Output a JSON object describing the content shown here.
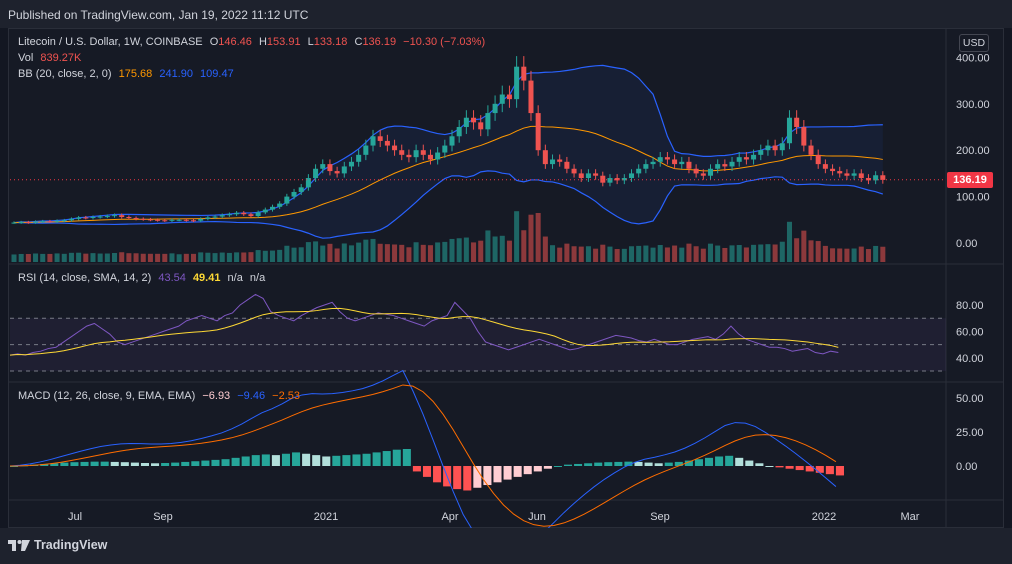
{
  "header": {
    "published": "Published on TradingView.com, Jan 19, 2022 11:12 UTC"
  },
  "branding": {
    "logo_text": "TradingView",
    "logo_icon": "tradingview-logo-icon"
  },
  "price_pane": {
    "symbol": "Litecoin / U.S. Dollar, 1W, COINBASE",
    "ohlc": {
      "O_label": "O",
      "O": "146.46",
      "H_label": "H",
      "H": "153.91",
      "L_label": "L",
      "L": "133.18",
      "C_label": "C",
      "C": "136.19",
      "change": "−10.30 (−7.03%)"
    },
    "vol_label": "Vol",
    "vol": "839.27K",
    "bb_label": "BB (20, close, 2, 0)",
    "bb_basis": "175.68",
    "bb_upper": "241.90",
    "bb_lower": "109.47",
    "currency": "USD",
    "last_price": "136.19",
    "ticks": [
      "400.00",
      "300.00",
      "200.00",
      "100.00",
      "0.00"
    ]
  },
  "rsi_pane": {
    "label": "RSI (14, close, SMA, 14, 2)",
    "rsi": "43.54",
    "sma": "49.41",
    "na1": "n/a",
    "na2": "n/a",
    "ticks": [
      "80.00",
      "60.00",
      "40.00"
    ]
  },
  "macd_pane": {
    "label": "MACD (12, 26, close, 9, EMA, EMA)",
    "hist": "−6.93",
    "macd": "−9.46",
    "signal": "−2.53",
    "ticks": [
      "50.00",
      "25.00",
      "0.00"
    ]
  },
  "time_axis": [
    "Jul",
    "Sep",
    "2021",
    "Apr",
    "Jun",
    "Sep",
    "2022",
    "Mar"
  ],
  "colors": {
    "up": "#26a69a",
    "down": "#ef5350",
    "bb": "#2962ff",
    "basis": "#ff9800",
    "rsi": "#7e57c2",
    "rsi_ma": "#fdd835",
    "macd": "#2962ff",
    "signal": "#ff6d00"
  },
  "chart_data": {
    "type": "line",
    "title": "Litecoin / U.S. Dollar, 1W, COINBASE",
    "weekly_close": [
      44,
      45,
      44,
      46,
      47,
      46,
      48,
      49,
      52,
      55,
      54,
      56,
      57,
      58,
      60,
      56,
      54,
      52,
      51,
      50,
      49,
      48,
      50,
      50,
      49,
      48,
      52,
      55,
      57,
      60,
      62,
      65,
      62,
      58,
      66,
      72,
      78,
      85,
      100,
      110,
      120,
      140,
      160,
      170,
      155,
      150,
      165,
      175,
      190,
      210,
      230,
      220,
      210,
      200,
      190,
      185,
      200,
      190,
      180,
      195,
      210,
      230,
      250,
      270,
      260,
      245,
      280,
      300,
      320,
      310,
      380,
      350,
      280,
      200,
      170,
      180,
      175,
      160,
      150,
      140,
      150,
      145,
      130,
      140,
      135,
      140,
      150,
      160,
      170,
      175,
      185,
      180,
      170,
      175,
      160,
      150,
      145,
      160,
      170,
      165,
      175,
      185,
      180,
      190,
      200,
      210,
      200,
      215,
      270,
      250,
      210,
      190,
      170,
      160,
      155,
      150,
      145,
      150,
      140,
      135,
      146,
      136
    ],
    "bb_basis_last": 175.68,
    "bb_upper_last": 241.9,
    "bb_lower_last": 109.47,
    "rsi": [
      42,
      43,
      42,
      44,
      45,
      47,
      48,
      52,
      56,
      60,
      64,
      66,
      62,
      58,
      52,
      50,
      52,
      54,
      56,
      58,
      60,
      62,
      64,
      68,
      70,
      72,
      70,
      68,
      72,
      74,
      80,
      84,
      88,
      85,
      75,
      72,
      70,
      68,
      72,
      75,
      78,
      80,
      82,
      75,
      70,
      68,
      70,
      72,
      74,
      73,
      72,
      70,
      68,
      66,
      64,
      68,
      70,
      72,
      82,
      76,
      70,
      60,
      52,
      50,
      48,
      46,
      48,
      50,
      52,
      54,
      52,
      50,
      48,
      46,
      47,
      49,
      51,
      53,
      55,
      57,
      56,
      55,
      53,
      52,
      54,
      52,
      50,
      50,
      52,
      54,
      55,
      56,
      54,
      58,
      64,
      58,
      54,
      52,
      50,
      48,
      48,
      47,
      45,
      46,
      47,
      44,
      43,
      45,
      44
    ],
    "macd_hist": [
      0,
      0.5,
      1,
      1.5,
      2,
      2.5,
      2.8,
      3,
      3.2,
      3.2,
      3,
      2.8,
      2.5,
      2.2,
      2,
      2.2,
      2.5,
      3,
      3.5,
      4,
      4.5,
      5,
      6,
      7,
      8,
      8.5,
      8,
      9,
      10,
      9,
      8,
      7,
      7.5,
      8,
      8.5,
      9,
      10,
      11,
      12,
      12.5,
      -4,
      -8,
      -12,
      -15,
      -17,
      -18,
      -16,
      -14,
      -12,
      -10,
      -8,
      -6,
      -4,
      -2,
      0,
      1,
      1.5,
      2,
      2.5,
      2.8,
      3,
      3.2,
      3,
      2.5,
      2,
      2.5,
      3,
      4,
      5,
      6,
      7,
      7.5,
      6,
      4,
      2,
      0,
      -1,
      -2,
      -3,
      -4,
      -5,
      -6,
      -6.93
    ]
  }
}
